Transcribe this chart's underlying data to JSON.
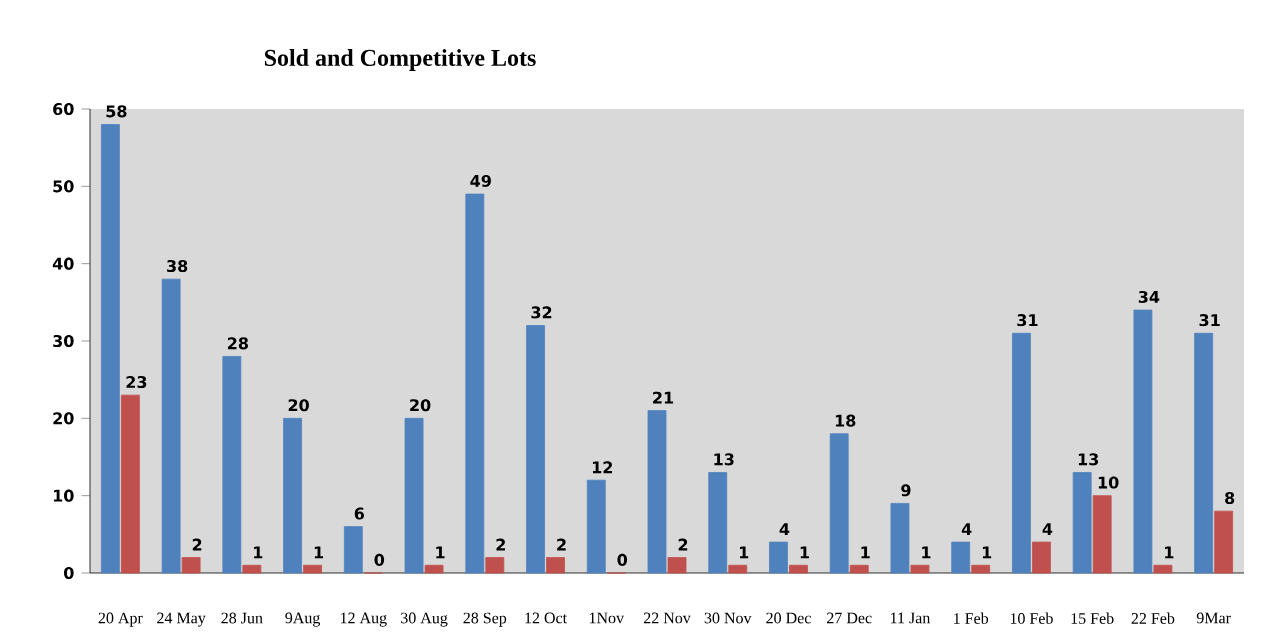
{
  "chart_data": {
    "type": "bar",
    "title": "Sold and Competitive Lots",
    "categories": [
      "20 Apr",
      "24 May",
      "28 Jun",
      "9Aug",
      "12 Aug",
      "30 Aug",
      "28 Sep",
      "12 Oct",
      "1Nov",
      "22 Nov",
      "30 Nov",
      "20 Dec",
      "27 Dec",
      "11 Jan",
      "1 Feb",
      "10 Feb",
      "15 Feb",
      "22 Feb",
      "9Mar"
    ],
    "series": [
      {
        "color": "#4f81bd",
        "values": [
          58,
          38,
          28,
          20,
          6,
          20,
          49,
          32,
          12,
          21,
          13,
          4,
          18,
          9,
          4,
          31,
          13,
          34,
          31
        ]
      },
      {
        "color": "#c0504d",
        "values": [
          23,
          2,
          1,
          1,
          0,
          1,
          2,
          2,
          0,
          2,
          1,
          1,
          1,
          1,
          1,
          4,
          10,
          1,
          8
        ]
      }
    ],
    "ylim": [
      0,
      60
    ],
    "yticks": [
      0,
      10,
      20,
      30,
      40,
      50,
      60
    ],
    "data_labels": true,
    "grid": false
  }
}
